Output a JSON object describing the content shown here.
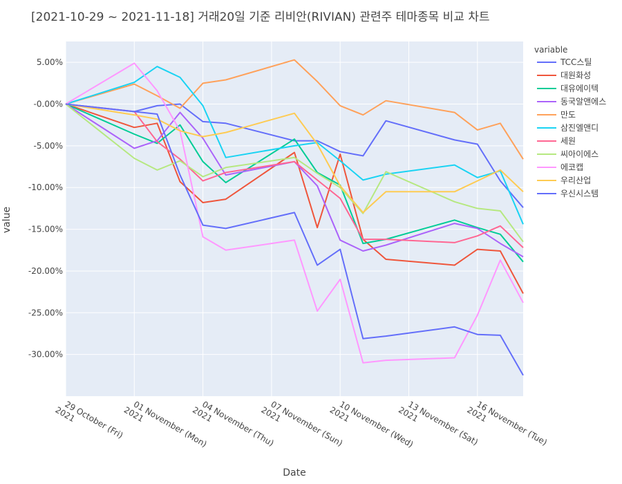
{
  "chart_data": {
    "type": "line",
    "title": "[2021-10-29 ~ 2021-11-18] 거래20일 기준 리비안(RIVIAN) 관련주 테마종목 비교 차트",
    "xlabel": "Date",
    "ylabel": "value",
    "legend_title": "variable",
    "legend_position": "right",
    "grid": true,
    "x_range": [
      "2021-10-29",
      "2021-11-18"
    ],
    "ylim": [
      -35,
      7.5
    ],
    "y_ticks": [
      {
        "value": 5,
        "label": "5.00%"
      },
      {
        "value": 0,
        "label": "-0.00%"
      },
      {
        "value": -5,
        "label": "-5.00%"
      },
      {
        "value": -10,
        "label": "-10.00%"
      },
      {
        "value": -15,
        "label": "-15.00%"
      },
      {
        "value": -20,
        "label": "-20.00%"
      },
      {
        "value": -25,
        "label": "-25.00%"
      },
      {
        "value": -30,
        "label": "-30.00%"
      }
    ],
    "x_ticks": [
      {
        "date": "2021-10-29",
        "line1": "29 October (Fri)",
        "line2": "2021"
      },
      {
        "date": "2021-11-01",
        "line1": "01 November (Mon)",
        "line2": "2021"
      },
      {
        "date": "2021-11-04",
        "line1": "04 November (Thu)",
        "line2": "2021"
      },
      {
        "date": "2021-11-07",
        "line1": "07 November (Sun)",
        "line2": "2021"
      },
      {
        "date": "2021-11-10",
        "line1": "10 November (Wed)",
        "line2": "2021"
      },
      {
        "date": "2021-11-13",
        "line1": "13 November (Sat)",
        "line2": "2021"
      },
      {
        "date": "2021-11-16",
        "line1": "16 November (Tue)",
        "line2": "2021"
      }
    ],
    "x": [
      "2021-10-29",
      "2021-11-01",
      "2021-11-02",
      "2021-11-03",
      "2021-11-04",
      "2021-11-05",
      "2021-11-08",
      "2021-11-09",
      "2021-11-10",
      "2021-11-11",
      "2021-11-12",
      "2021-11-15",
      "2021-11-16",
      "2021-11-17",
      "2021-11-18"
    ],
    "series": [
      {
        "name": "TCC스틸",
        "color": "#636efa",
        "values": [
          0,
          -0.9,
          -0.2,
          0,
          -2.1,
          -2.3,
          -4.4,
          -4.4,
          -5.7,
          -6.2,
          -2.0,
          -4.3,
          -4.8,
          -9.2,
          -12.4
        ]
      },
      {
        "name": "대원화성",
        "color": "#ef553b",
        "values": [
          0,
          -2.8,
          -2.3,
          -9.3,
          -11.8,
          -11.4,
          -5.8,
          -14.8,
          -6.0,
          -16.2,
          -18.6,
          -19.3,
          -17.4,
          -17.6,
          -22.7
        ]
      },
      {
        "name": "대유에이텍",
        "color": "#00cc96",
        "values": [
          0,
          -3.6,
          -4.7,
          -2.5,
          -6.9,
          -9.4,
          -4.2,
          -8.2,
          -9.7,
          -16.7,
          -16.2,
          -13.9,
          -14.8,
          -15.6,
          -18.9
        ]
      },
      {
        "name": "동국알앤에스",
        "color": "#ab63fa",
        "values": [
          0,
          -5.3,
          -4.4,
          -1.0,
          -4.1,
          -8.5,
          -6.9,
          -9.8,
          -16.3,
          -17.6,
          -16.9,
          -14.3,
          -14.9,
          -16.7,
          -18.3
        ]
      },
      {
        "name": "만도",
        "color": "#ffa15a",
        "values": [
          0,
          2.4,
          1.0,
          -0.5,
          2.5,
          2.9,
          5.3,
          2.7,
          -0.2,
          -1.3,
          0.4,
          -1.0,
          -3.1,
          -2.3,
          -6.6
        ]
      },
      {
        "name": "삼진엘앤디",
        "color": "#19d3f3",
        "values": [
          0,
          2.6,
          4.5,
          3.2,
          -0.2,
          -6.4,
          -5.0,
          -4.6,
          -6.8,
          -9.1,
          -8.4,
          -7.3,
          -8.8,
          -8.0,
          -14.4
        ]
      },
      {
        "name": "세원",
        "color": "#ff6692",
        "values": [
          0,
          -0.9,
          -4.5,
          -6.6,
          -9.2,
          -8.2,
          -6.9,
          -9.1,
          -11.3,
          -16.2,
          -16.2,
          -16.6,
          -15.8,
          -14.6,
          -17.2
        ]
      },
      {
        "name": "씨아이에스",
        "color": "#b6e880",
        "values": [
          0,
          -6.5,
          -7.9,
          -6.8,
          -8.7,
          -7.6,
          -6.4,
          -8.3,
          -10.0,
          -13.1,
          -8.1,
          -11.7,
          -12.5,
          -12.8,
          -16.5
        ]
      },
      {
        "name": "에코캡",
        "color": "#ff97ff",
        "values": [
          0,
          4.9,
          1.6,
          -3.2,
          -15.9,
          -17.5,
          -16.3,
          -24.8,
          -21.0,
          -31.0,
          -30.7,
          -30.4,
          -25.3,
          -18.7,
          -23.8
        ]
      },
      {
        "name": "우리산업",
        "color": "#fecb52",
        "values": [
          0,
          -1.3,
          -1.8,
          -3.2,
          -3.9,
          -3.4,
          -1.1,
          -4.8,
          -9.8,
          -13.0,
          -10.5,
          -10.5,
          -9.2,
          -7.9,
          -10.5
        ]
      },
      {
        "name": "우신시스템",
        "color": "#636efa",
        "values": [
          0,
          -0.9,
          -1.2,
          -8.5,
          -14.5,
          -14.9,
          -13.0,
          -19.3,
          -17.4,
          -28.1,
          -27.8,
          -26.7,
          -27.6,
          -27.7,
          -32.5
        ]
      }
    ]
  }
}
